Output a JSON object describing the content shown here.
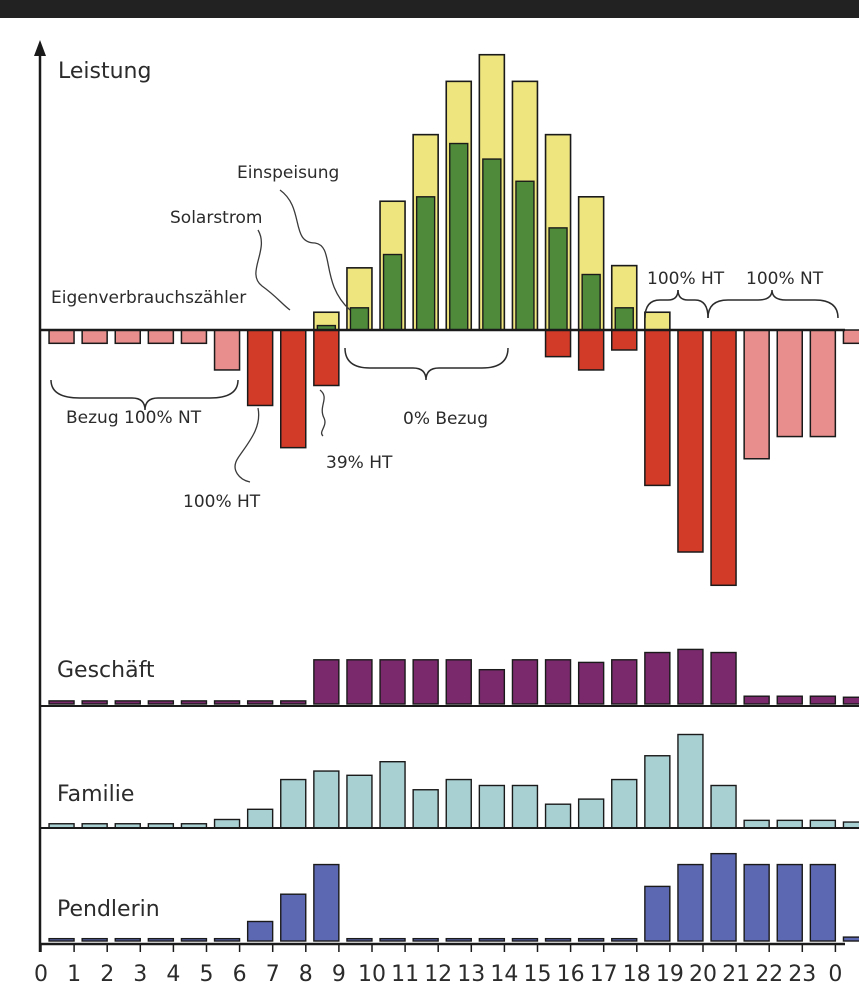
{
  "chart_data": {
    "type": "bar",
    "x_ticks": [
      "0",
      "1",
      "2",
      "3",
      "4",
      "5",
      "6",
      "7",
      "8",
      "9",
      "10",
      "11",
      "12",
      "13",
      "14",
      "15",
      "16",
      "17",
      "18",
      "19",
      "20",
      "21",
      "22",
      "23",
      "0"
    ],
    "main": {
      "ylabel": "Leistung",
      "solar": [
        0,
        0,
        0,
        0,
        0,
        0,
        0,
        0,
        0.08,
        0.28,
        0.58,
        0.88,
        1.12,
        1.24,
        1.12,
        0.88,
        0.6,
        0.29,
        0.08,
        0,
        0,
        0,
        0,
        0
      ],
      "feedin": [
        0,
        0,
        0,
        0,
        0,
        0,
        0,
        0,
        0.02,
        0.1,
        0.34,
        0.6,
        0.84,
        0.77,
        0.67,
        0.46,
        0.25,
        0.1,
        0,
        0,
        0,
        0,
        0,
        0
      ],
      "consumption": [
        0.06,
        0.06,
        0.06,
        0.06,
        0.06,
        0.18,
        0.34,
        0.53,
        0.25,
        0,
        0,
        0,
        0,
        0,
        0,
        0.12,
        0.18,
        0.09,
        0.7,
        1.0,
        1.15,
        0.58,
        0.48,
        0.48,
        0.06
      ],
      "consumption_kind": [
        "NT",
        "NT",
        "NT",
        "NT",
        "NT",
        "NT",
        "HT",
        "HT",
        "HT",
        "HT",
        "HT",
        "HT",
        "HT",
        "HT",
        "HT",
        "HT",
        "HT",
        "HT",
        "HT",
        "HT",
        "HT",
        "NT",
        "NT",
        "NT",
        "NT"
      ],
      "colors": {
        "solar": "#efe57f",
        "feedin": "#4e8a3a",
        "ht": "#d23b28",
        "nt": "#e88f8d",
        "stroke": "#1a1a1a"
      },
      "annotations": {
        "einspeisung": "Einspeisung",
        "solarstrom": "Solarstrom",
        "eigenverbrauchszaehler": "Eigenverbrauchszähler",
        "bezug_nt": "Bezug 100% NT",
        "ht_100_left": "100% HT",
        "ht_39": "39% HT",
        "bezug_0": "0% Bezug",
        "ht_100_right": "100% HT",
        "nt_100_right": "100% NT"
      }
    },
    "profiles": [
      {
        "name": "Geschäft",
        "color": "#7a2a6c",
        "values": [
          0.06,
          0.06,
          0.06,
          0.06,
          0.06,
          0.06,
          0.06,
          0.06,
          0.85,
          0.85,
          0.85,
          0.85,
          0.85,
          0.66,
          0.85,
          0.85,
          0.8,
          0.85,
          0.99,
          1.05,
          0.99,
          0.15,
          0.15,
          0.15,
          0.13
        ]
      },
      {
        "name": "Familie",
        "color": "#a8cfd2",
        "values": [
          0.05,
          0.05,
          0.05,
          0.05,
          0.05,
          0.1,
          0.22,
          0.57,
          0.67,
          0.62,
          0.78,
          0.45,
          0.57,
          0.5,
          0.5,
          0.28,
          0.34,
          0.57,
          0.85,
          1.1,
          0.5,
          0.09,
          0.09,
          0.09,
          0.07
        ]
      },
      {
        "name": "Pendlerin",
        "color": "#5d68b2",
        "values": [
          0.03,
          0.03,
          0.03,
          0.03,
          0.03,
          0.03,
          0.25,
          0.6,
          0.98,
          0.03,
          0.03,
          0.03,
          0.03,
          0.03,
          0.03,
          0.03,
          0.03,
          0.03,
          0.7,
          0.98,
          1.12,
          0.98,
          0.98,
          0.98,
          0.05
        ]
      }
    ]
  }
}
